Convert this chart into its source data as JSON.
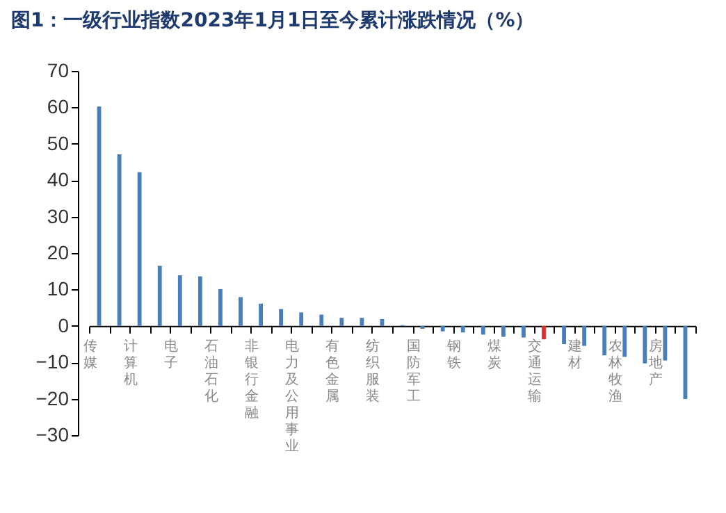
{
  "chart_data": {
    "type": "bar",
    "title": "图1：一级行业指数2023年1月1日至今累计涨跌情况（%）",
    "categories": [
      "传媒",
      null,
      "计算机",
      null,
      "电子",
      null,
      "石油石化",
      null,
      "非银行金融",
      null,
      "电力及公用事业",
      null,
      "有色金属",
      null,
      "纺织服装",
      null,
      "国防军工",
      null,
      "钢铁",
      null,
      "煤炭",
      null,
      "交通运输",
      null,
      "建材",
      null,
      "农林牧渔",
      null,
      "房地产",
      null
    ],
    "values": [
      60.2,
      47.1,
      42.2,
      16.5,
      13.9,
      13.6,
      10.1,
      7.9,
      6.1,
      4.6,
      3.7,
      3.1,
      2.2,
      2.2,
      1.9,
      0.2,
      -0.8,
      -1.5,
      -1.8,
      -2.4,
      -3,
      -3.2,
      -3.7,
      -5,
      -5.5,
      -8.1,
      -8.5,
      -10.3,
      -9.5,
      -20.1
    ],
    "colors": [
      "#4a7ebb",
      "#4a7ebb",
      "#4a7ebb",
      "#4a7ebb",
      "#4a7ebb",
      "#4a7ebb",
      "#4a7ebb",
      "#4a7ebb",
      "#4a7ebb",
      "#4a7ebb",
      "#4a7ebb",
      "#4a7ebb",
      "#4a7ebb",
      "#4a7ebb",
      "#4a7ebb",
      "#4a7ebb",
      "#4a7ebb",
      "#4a7ebb",
      "#4a7ebb",
      "#4a7ebb",
      "#4a7ebb",
      "#4a7ebb",
      "#d9302a",
      "#4a7ebb",
      "#4a7ebb",
      "#4a7ebb",
      "#4a7ebb",
      "#4a7ebb",
      "#4a7ebb",
      "#4a7ebb"
    ],
    "ylim": [
      -30,
      70
    ],
    "yticks": [
      -30,
      -20,
      -10,
      0,
      10,
      20,
      30,
      40,
      50,
      60,
      70
    ],
    "grid": false
  }
}
